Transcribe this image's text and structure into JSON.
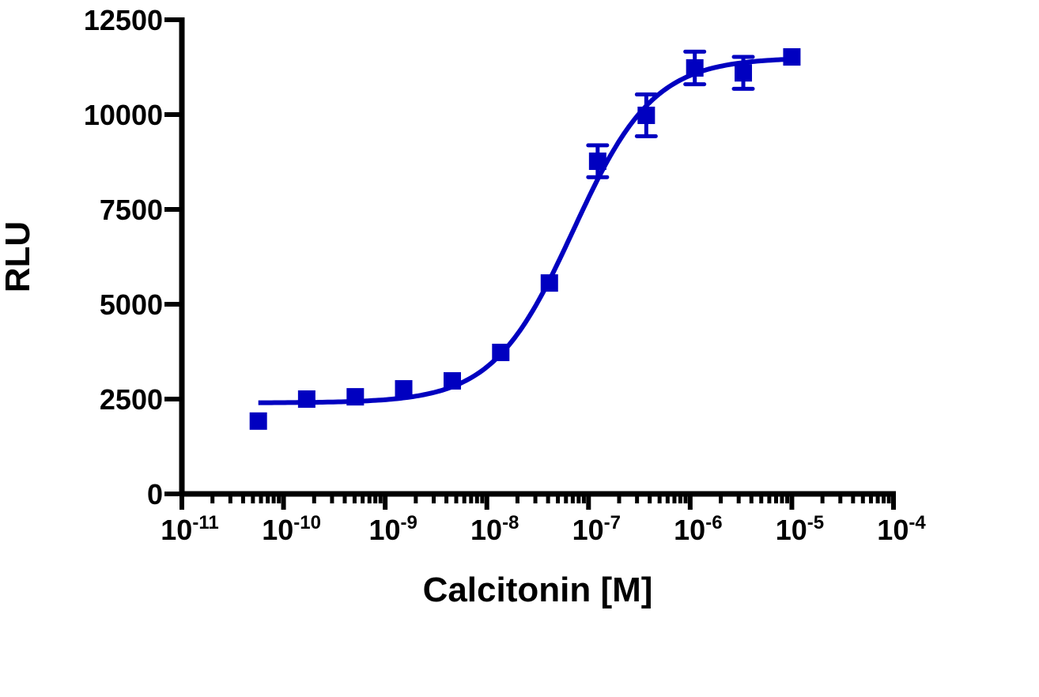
{
  "chart_data": {
    "type": "scatter",
    "title": "",
    "xlabel": "Calcitonin [M]",
    "ylabel": "RLU",
    "xscale": "log",
    "xlim": [
      1e-11,
      0.0001
    ],
    "ylim": [
      0,
      12500
    ],
    "grid": false,
    "color": "#0000c0",
    "marker": "square",
    "x_ticks": [
      {
        "base": "10",
        "exp": "-11"
      },
      {
        "base": "10",
        "exp": "-10"
      },
      {
        "base": "10",
        "exp": "-9"
      },
      {
        "base": "10",
        "exp": "-8"
      },
      {
        "base": "10",
        "exp": "-7"
      },
      {
        "base": "10",
        "exp": "-6"
      },
      {
        "base": "10",
        "exp": "-5"
      },
      {
        "base": "10",
        "exp": "-4"
      }
    ],
    "y_ticks": [
      "0",
      "2500",
      "5000",
      "7500",
      "10000",
      "12500"
    ],
    "series": [
      {
        "x": [
          5.65e-11,
          1.69e-10,
          5.08e-10,
          1.52e-09,
          4.57e-09,
          1.37e-08,
          4.12e-08,
          1.23e-07,
          3.7e-07,
          1.11e-06,
          3.33e-06,
          1e-05
        ],
        "y": [
          1920,
          2500,
          2560,
          2770,
          2980,
          3730,
          5560,
          8770,
          9980,
          11230,
          11100,
          11520
        ],
        "error": [
          0,
          0,
          0,
          0,
          0,
          0,
          0,
          420,
          550,
          430,
          420,
          0
        ]
      }
    ],
    "fit_curve": {
      "model": "sigmoidal dose-response",
      "bottom": 2400,
      "top": 11500,
      "logEC50": -7.15,
      "hill": 1.1,
      "x_range": [
        5.65e-11,
        1e-05
      ]
    }
  }
}
